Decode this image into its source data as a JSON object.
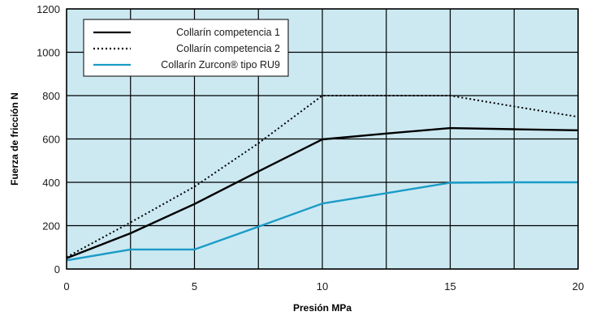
{
  "chart_data": {
    "type": "line",
    "title": "",
    "xlabel": "Presión MPa",
    "ylabel": "Fuerza de fricción N",
    "xlim": [
      0,
      20
    ],
    "ylim": [
      0,
      1200
    ],
    "x_ticks": [
      0,
      5,
      10,
      15,
      20
    ],
    "y_ticks": [
      0,
      200,
      400,
      600,
      800,
      1000,
      1200
    ],
    "x_gridlines": [
      0,
      2.5,
      5,
      7.5,
      10,
      12.5,
      15,
      17.5,
      20
    ],
    "grid": true,
    "plot_background": "#cce9f2",
    "legend_position": "top-left",
    "series": [
      {
        "name": "Collarín competencia 1",
        "style": "solid",
        "color": "#000000",
        "x": [
          0,
          2.5,
          5,
          7.5,
          10,
          12.5,
          15,
          17.5,
          20
        ],
        "y": [
          50,
          165,
          300,
          450,
          598,
          625,
          650,
          645,
          640
        ]
      },
      {
        "name": "Collarín competencia 2",
        "style": "dotted",
        "color": "#000000",
        "x": [
          0,
          2.5,
          5,
          7.5,
          10,
          12.5,
          15,
          17.5,
          20
        ],
        "y": [
          55,
          215,
          380,
          580,
          800,
          800,
          800,
          750,
          702
        ]
      },
      {
        "name": "Collarín Zurcon® tipo RU9",
        "style": "solid",
        "color": "#1a9bc7",
        "x": [
          0,
          2.5,
          5,
          7.5,
          10,
          12.5,
          15,
          17.5,
          20
        ],
        "y": [
          40,
          90,
          90,
          195,
          302,
          350,
          398,
          400,
          400
        ]
      }
    ]
  }
}
